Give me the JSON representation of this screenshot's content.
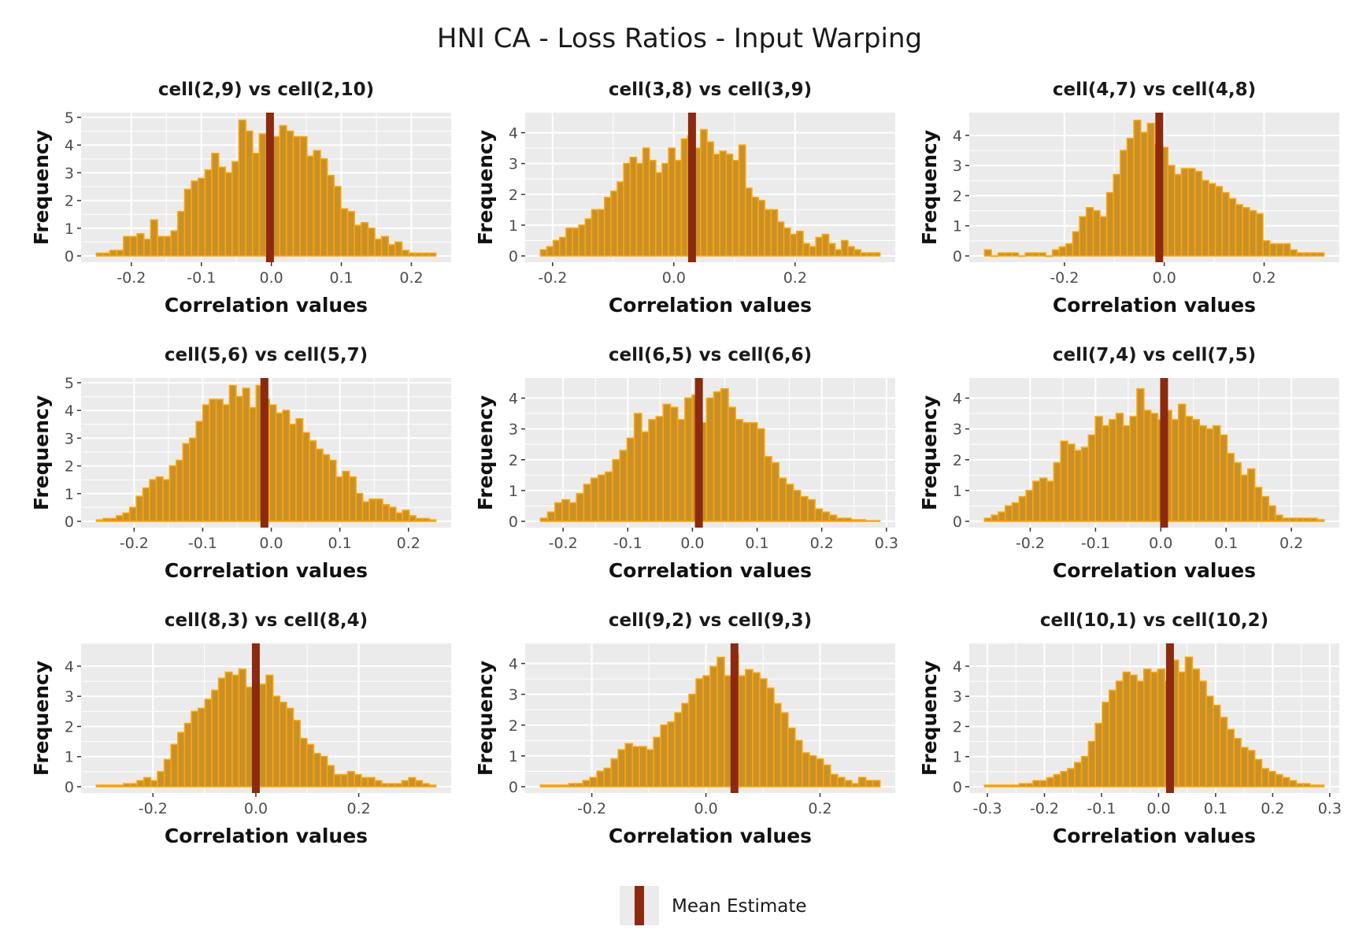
{
  "title": "HNI CA - Loss Ratios - Input Warping",
  "legend": {
    "label": "Mean Estimate",
    "position": "bottom",
    "mean_color": "#8B2A0E"
  },
  "colors": {
    "bar_fill": "#C8902A",
    "bar_outline": "#FFA500",
    "mean_line": "#8B2A0E",
    "panel_bg": "#EBEBEB",
    "grid": "#FFFFFF"
  },
  "chart_data": [
    {
      "type": "bar",
      "title": "cell(2,9) vs cell(2,10)",
      "xlabel": "Correlation values",
      "ylabel": "Frequency",
      "xlim": [
        -0.25,
        0.235
      ],
      "ylim": [
        0,
        5.0
      ],
      "xticks": [
        -0.2,
        -0.1,
        0.0,
        0.1,
        0.2
      ],
      "yticks": [
        0,
        1,
        2,
        3,
        4,
        5
      ],
      "mean": -0.002,
      "values": [
        0.1,
        0.1,
        0.2,
        0.2,
        0.7,
        0.7,
        0.8,
        0.6,
        1.3,
        0.7,
        0.7,
        0.9,
        1.6,
        2.4,
        2.7,
        2.8,
        3.1,
        3.7,
        3.2,
        3.0,
        3.4,
        4.9,
        4.5,
        3.7,
        4.4,
        3.9,
        4.3,
        4.7,
        4.5,
        4.3,
        4.3,
        3.6,
        3.8,
        3.5,
        2.9,
        2.5,
        1.7,
        1.6,
        1.1,
        1.2,
        1.0,
        0.6,
        0.7,
        0.4,
        0.5,
        0.2,
        0.1,
        0.1,
        0.1,
        0.1
      ]
    },
    {
      "type": "bar",
      "title": "cell(3,8) vs cell(3,9)",
      "xlabel": "Correlation values",
      "ylabel": "Frequency",
      "xlim": [
        -0.22,
        0.34
      ],
      "ylim": [
        0,
        4.5
      ],
      "xticks": [
        -0.2,
        0.0,
        0.2
      ],
      "yticks": [
        0,
        1,
        2,
        3,
        4
      ],
      "mean": 0.03,
      "values": [
        0.2,
        0.3,
        0.5,
        0.6,
        0.9,
        0.9,
        1.0,
        1.2,
        1.5,
        1.5,
        1.9,
        2.1,
        2.4,
        3.0,
        3.2,
        3.0,
        3.5,
        3.1,
        2.7,
        3.0,
        3.5,
        3.1,
        3.8,
        3.9,
        3.5,
        4.1,
        3.7,
        3.3,
        3.4,
        3.3,
        3.1,
        3.6,
        2.2,
        1.9,
        1.8,
        1.5,
        1.5,
        1.1,
        0.9,
        0.7,
        0.8,
        0.4,
        0.3,
        0.6,
        0.7,
        0.4,
        0.2,
        0.5,
        0.3,
        0.2,
        0.1,
        0.1,
        0.1
      ]
    },
    {
      "type": "bar",
      "title": "cell(4,7) vs cell(4,8)",
      "xlabel": "Correlation values",
      "ylabel": "Frequency",
      "xlim": [
        -0.36,
        0.32
      ],
      "ylim": [
        0,
        4.6
      ],
      "xticks": [
        -0.2,
        0.0,
        0.2
      ],
      "yticks": [
        0,
        1,
        2,
        3,
        4
      ],
      "mean": -0.01,
      "values": [
        0.2,
        0.0,
        0.1,
        0.1,
        0.1,
        0.0,
        0.1,
        0.1,
        0.1,
        0.0,
        0.2,
        0.3,
        0.4,
        0.8,
        1.3,
        1.6,
        1.5,
        1.3,
        2.1,
        2.7,
        3.5,
        3.9,
        4.5,
        4.1,
        4.4,
        3.7,
        3.6,
        3.0,
        2.7,
        2.9,
        2.9,
        2.8,
        2.5,
        2.4,
        2.3,
        2.1,
        1.9,
        1.7,
        1.6,
        1.5,
        1.4,
        0.5,
        0.4,
        0.4,
        0.4,
        0.2,
        0.1,
        0.1,
        0.1,
        0.1
      ]
    },
    {
      "type": "bar",
      "title": "cell(5,6) vs cell(5,7)",
      "xlabel": "Correlation values",
      "ylabel": "Frequency",
      "xlim": [
        -0.255,
        0.24
      ],
      "ylim": [
        0,
        5.0
      ],
      "xticks": [
        -0.2,
        -0.1,
        0.0,
        0.1,
        0.2
      ],
      "yticks": [
        0,
        1,
        2,
        3,
        4,
        5
      ],
      "mean": -0.01,
      "values": [
        0.05,
        0.1,
        0.1,
        0.2,
        0.3,
        0.5,
        0.9,
        1.2,
        1.5,
        1.6,
        1.5,
        2.0,
        2.2,
        2.8,
        3.0,
        3.6,
        4.2,
        4.4,
        4.4,
        4.2,
        4.9,
        4.5,
        4.8,
        4.1,
        4.9,
        4.4,
        4.2,
        3.9,
        4.0,
        3.5,
        3.7,
        3.2,
        2.9,
        2.6,
        2.4,
        2.2,
        1.6,
        1.8,
        1.6,
        1.0,
        0.7,
        0.8,
        0.8,
        0.6,
        0.5,
        0.3,
        0.4,
        0.2,
        0.1,
        0.1,
        0.05
      ]
    },
    {
      "type": "bar",
      "title": "cell(6,5) vs cell(6,6)",
      "xlabel": "Correlation values",
      "ylabel": "Frequency",
      "xlim": [
        -0.235,
        0.29
      ],
      "ylim": [
        0,
        4.5
      ],
      "xticks": [
        -0.2,
        -0.1,
        0.0,
        0.1,
        0.2,
        0.3
      ],
      "yticks": [
        0,
        1,
        2,
        3,
        4
      ],
      "mean": 0.01,
      "values": [
        0.1,
        0.3,
        0.6,
        0.7,
        0.6,
        0.9,
        1.2,
        1.4,
        1.5,
        1.6,
        2.0,
        2.3,
        2.7,
        3.5,
        2.9,
        3.3,
        3.4,
        3.8,
        3.7,
        3.3,
        4.0,
        4.1,
        3.2,
        4.0,
        4.2,
        4.3,
        3.7,
        3.3,
        3.2,
        3.2,
        3.0,
        2.1,
        1.9,
        1.4,
        1.2,
        1.0,
        0.8,
        0.7,
        0.4,
        0.3,
        0.2,
        0.1,
        0.1,
        0.05,
        0.05,
        0.02,
        0.02
      ]
    },
    {
      "type": "bar",
      "title": "cell(7,4) vs cell(7,5)",
      "xlabel": "Correlation values",
      "ylabel": "Frequency",
      "xlim": [
        -0.27,
        0.25
      ],
      "ylim": [
        0,
        4.5
      ],
      "xticks": [
        -0.2,
        -0.1,
        0.0,
        0.1,
        0.2
      ],
      "yticks": [
        0,
        1,
        2,
        3,
        4
      ],
      "mean": 0.005,
      "values": [
        0.1,
        0.2,
        0.3,
        0.5,
        0.6,
        0.8,
        1.0,
        1.3,
        1.4,
        1.3,
        1.9,
        2.6,
        2.5,
        2.3,
        2.4,
        2.8,
        3.4,
        3.1,
        3.3,
        3.5,
        3.1,
        3.4,
        4.3,
        3.6,
        3.5,
        3.3,
        3.6,
        3.3,
        3.8,
        3.4,
        3.3,
        3.1,
        3.0,
        3.1,
        2.8,
        2.2,
        1.9,
        1.5,
        1.7,
        1.1,
        0.8,
        0.5,
        0.2,
        0.1,
        0.1,
        0.1,
        0.1,
        0.1,
        0.05
      ]
    },
    {
      "type": "bar",
      "title": "cell(8,3) vs cell(8,4)",
      "xlabel": "Correlation values",
      "ylabel": "Frequency",
      "xlim": [
        -0.31,
        0.35
      ],
      "ylim": [
        0,
        4.6
      ],
      "xticks": [
        -0.2,
        0.0,
        0.2
      ],
      "yticks": [
        0,
        1,
        2,
        3,
        4
      ],
      "mean": 0.0,
      "values": [
        0.05,
        0.05,
        0.05,
        0.05,
        0.1,
        0.1,
        0.2,
        0.3,
        0.2,
        0.5,
        0.9,
        1.4,
        1.8,
        2.1,
        2.5,
        2.6,
        2.9,
        3.2,
        3.6,
        3.8,
        3.7,
        3.9,
        3.3,
        3.1,
        3.4,
        3.7,
        3.0,
        2.8,
        2.6,
        2.2,
        1.6,
        1.4,
        1.1,
        1.0,
        0.7,
        0.4,
        0.4,
        0.5,
        0.4,
        0.3,
        0.3,
        0.2,
        0.1,
        0.1,
        0.1,
        0.2,
        0.3,
        0.2,
        0.1,
        0.05
      ]
    },
    {
      "type": "bar",
      "title": "cell(9,2) vs cell(9,3)",
      "xlabel": "Correlation values",
      "ylabel": "Frequency",
      "xlim": [
        -0.29,
        0.305
      ],
      "ylim": [
        0,
        4.5
      ],
      "xticks": [
        -0.2,
        0.0,
        0.2
      ],
      "yticks": [
        0,
        1,
        2,
        3,
        4
      ],
      "mean": 0.05,
      "values": [
        0.05,
        0.05,
        0.05,
        0.05,
        0.1,
        0.1,
        0.2,
        0.3,
        0.5,
        0.6,
        0.9,
        1.2,
        1.4,
        1.3,
        1.3,
        1.2,
        1.6,
        2.0,
        2.1,
        2.4,
        2.7,
        3.0,
        3.5,
        3.6,
        3.9,
        4.2,
        3.6,
        4.3,
        3.6,
        3.8,
        3.7,
        3.5,
        3.2,
        2.7,
        2.4,
        1.9,
        1.5,
        1.1,
        1.0,
        0.9,
        0.7,
        0.4,
        0.3,
        0.2,
        0.1,
        0.3,
        0.2,
        0.2
      ]
    },
    {
      "type": "bar",
      "title": "cell(10,1) vs cell(10,2)",
      "xlabel": "Correlation values",
      "ylabel": "Frequency",
      "xlim": [
        -0.305,
        0.29
      ],
      "ylim": [
        0,
        4.6
      ],
      "xticks": [
        -0.3,
        -0.2,
        -0.1,
        0.0,
        0.1,
        0.2,
        0.3
      ],
      "yticks": [
        0,
        1,
        2,
        3,
        4
      ],
      "mean": 0.02,
      "values": [
        0.05,
        0.05,
        0.05,
        0.05,
        0.05,
        0.1,
        0.1,
        0.2,
        0.2,
        0.3,
        0.4,
        0.5,
        0.6,
        0.8,
        1.0,
        1.5,
        2.1,
        2.8,
        3.2,
        3.5,
        3.8,
        3.7,
        3.5,
        3.9,
        3.8,
        3.9,
        3.5,
        4.2,
        3.8,
        4.3,
        3.9,
        3.5,
        3.0,
        2.7,
        2.3,
        1.9,
        1.6,
        1.3,
        1.2,
        0.9,
        0.6,
        0.5,
        0.4,
        0.3,
        0.2,
        0.1,
        0.1,
        0.05,
        0.05
      ]
    }
  ]
}
